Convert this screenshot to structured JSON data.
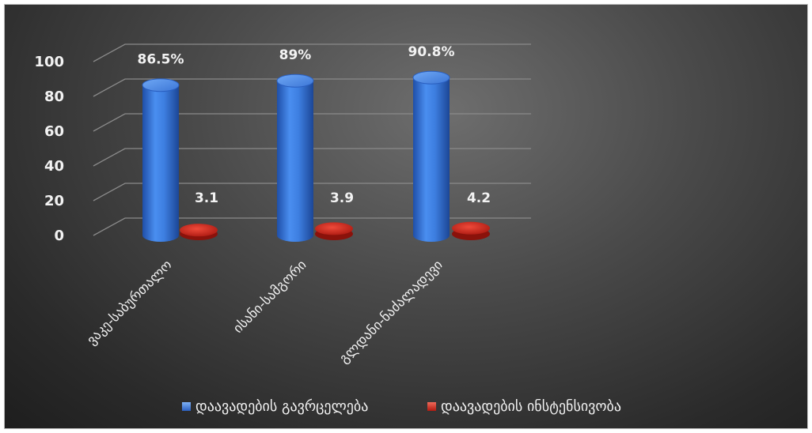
{
  "chart_data": {
    "type": "bar",
    "categories": [
      "ვაკე-საბურთალო",
      "ისანი-სამგორი",
      "გლდანი-ნაძალადევი"
    ],
    "series": [
      {
        "name": "დაავადების გავრცელება",
        "values": [
          86.5,
          89,
          90.8
        ],
        "labels": [
          "86.5%",
          "89%",
          "90.8%"
        ],
        "color": "#3a78d8"
      },
      {
        "name": "დაავადების ინსტენსივობა",
        "values": [
          3.1,
          3.9,
          4.2
        ],
        "labels": [
          "3.1",
          "3.9",
          "4.2"
        ],
        "color": "#d42a1e"
      }
    ],
    "yticks": [
      "0",
      "20",
      "40",
      "60",
      "80",
      "100"
    ],
    "ylim": [
      0,
      100
    ],
    "grid": true,
    "legend_position": "bottom",
    "style": "3d-cylinder"
  }
}
